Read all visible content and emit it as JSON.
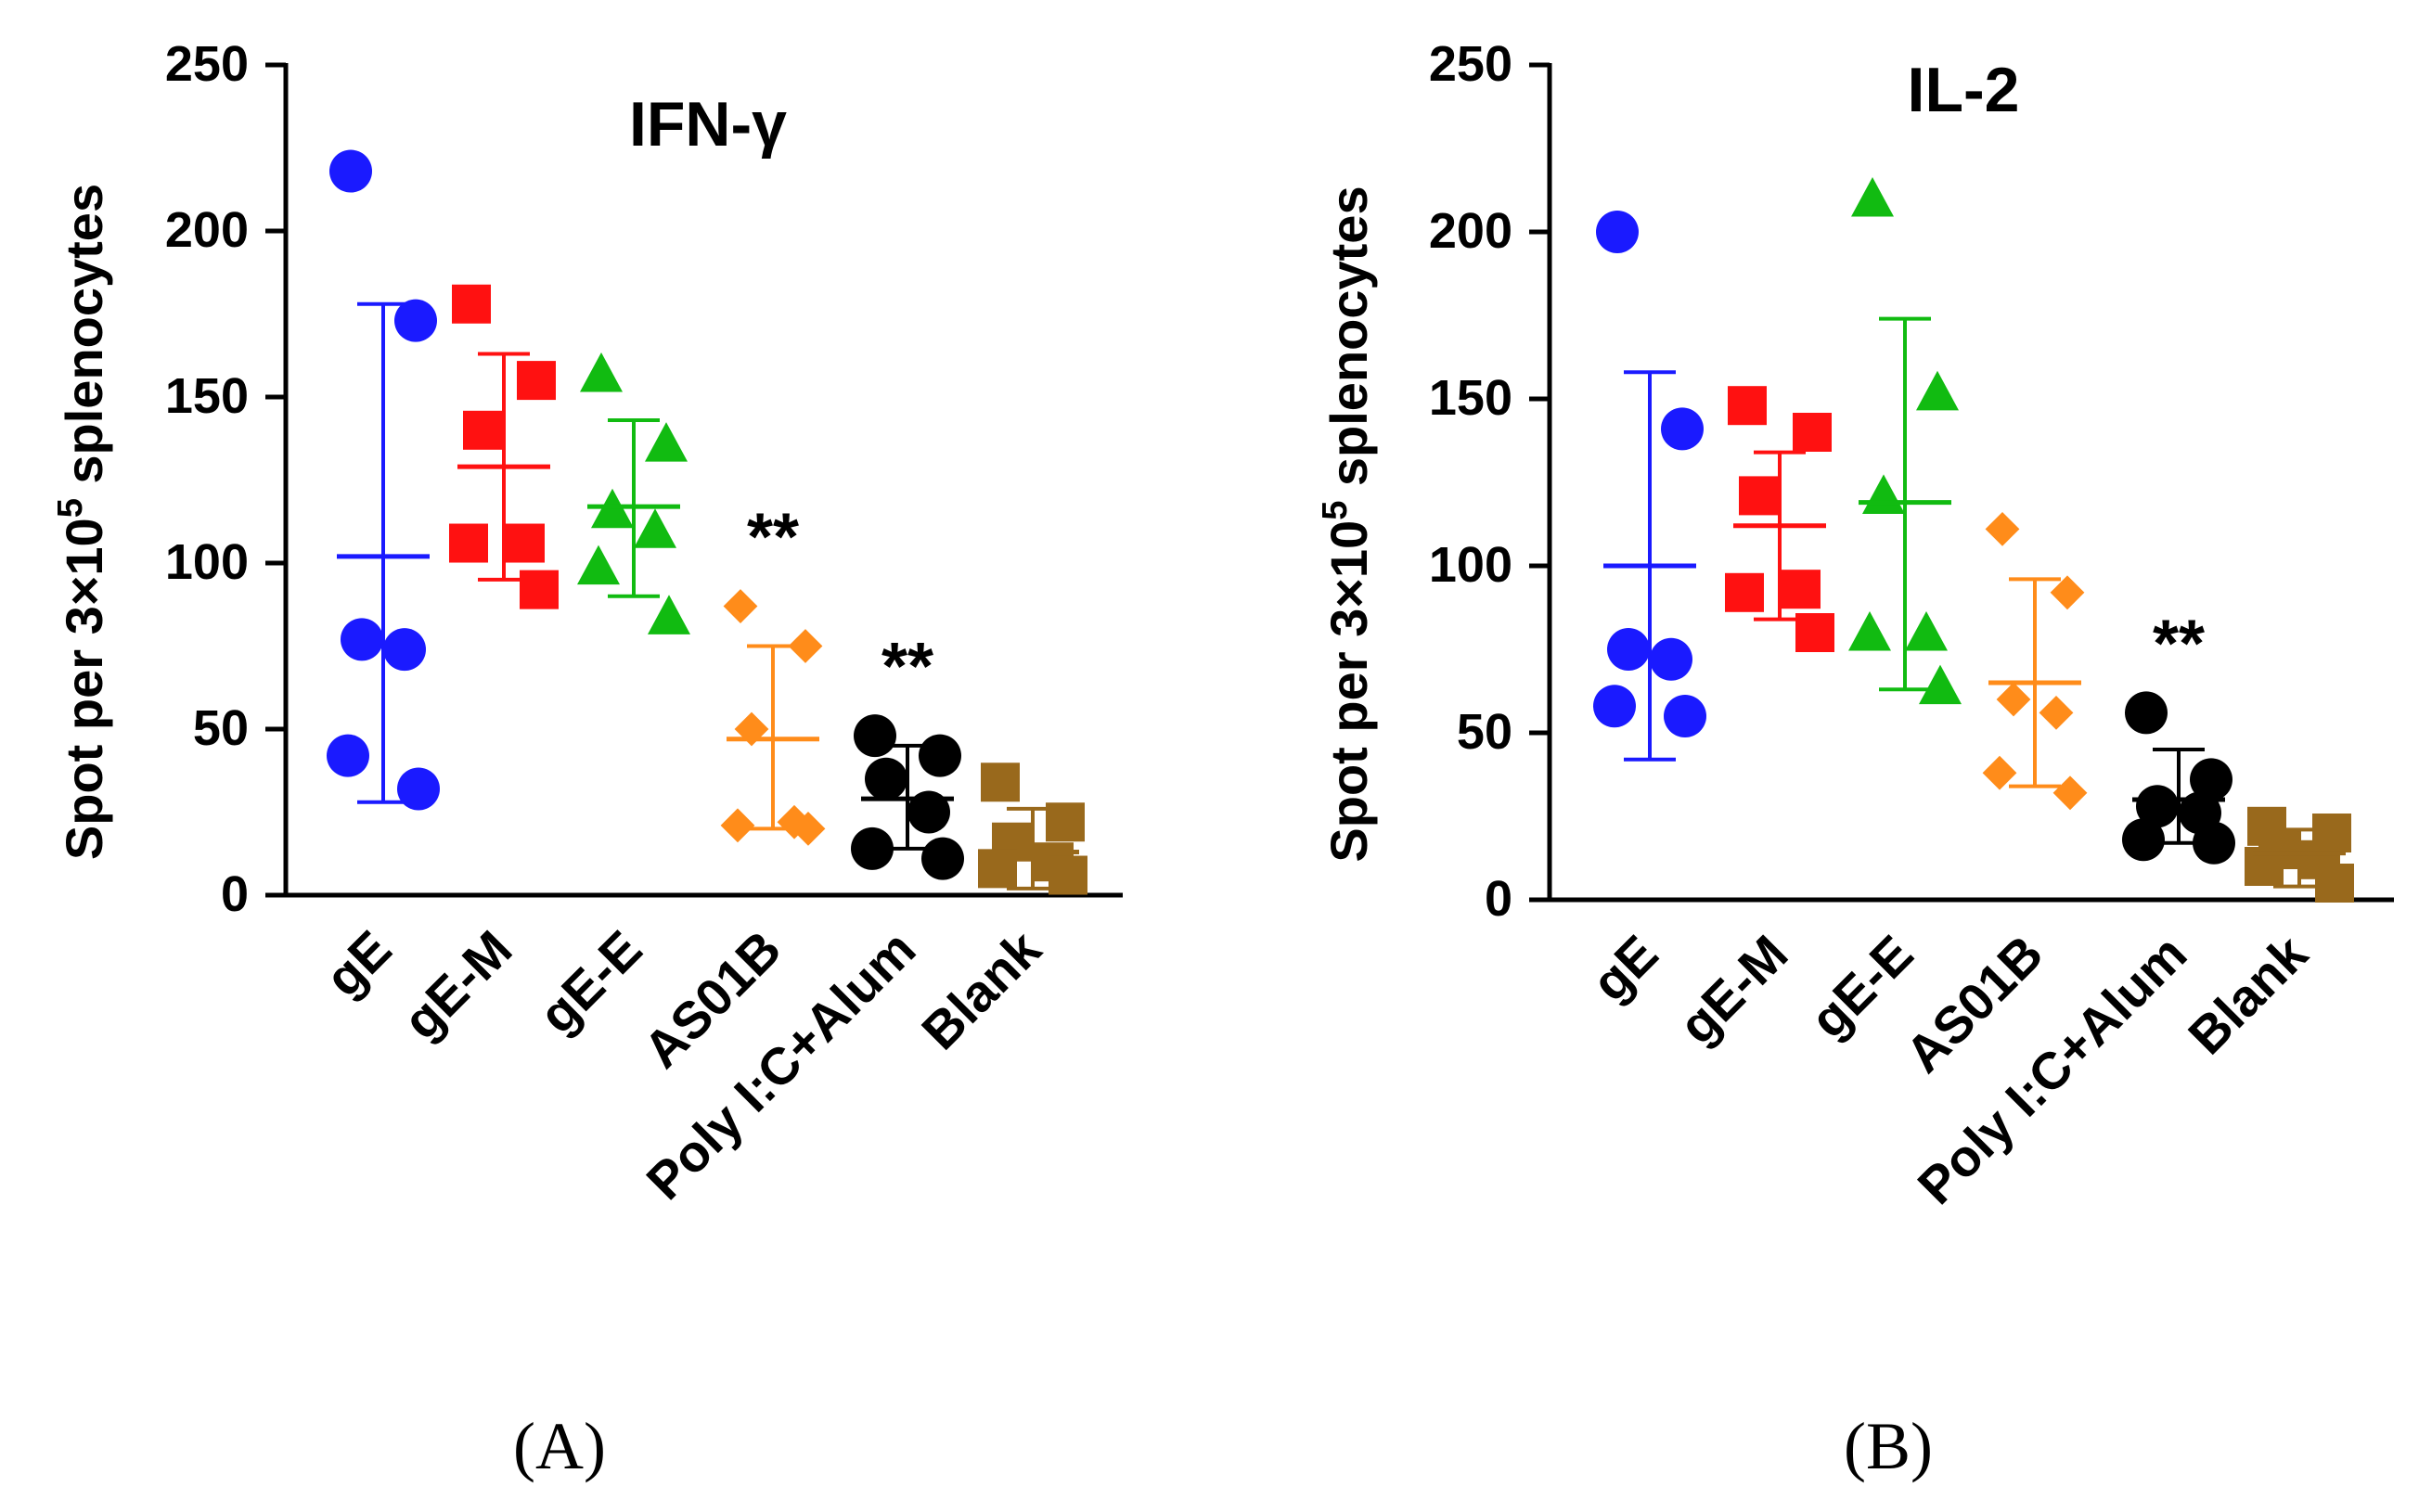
{
  "chart_data": [
    {
      "id": "A",
      "type": "scatter",
      "panel_label": "(A)",
      "title": "IFN-γ",
      "ylabel": "Spot per 3×10⁵ splenocytes",
      "ylabel_parts": {
        "pre": "Spot per 3×10",
        "sup": "5",
        "post": " splenocytes"
      },
      "xlabel": "",
      "ylim": [
        0,
        250
      ],
      "yticks": [
        "0",
        "50",
        "100",
        "150",
        "200",
        "250"
      ],
      "categories": [
        "gE",
        "gE-M",
        "gE-E",
        "AS01B",
        "Poly I:C+Alum",
        "Blank"
      ],
      "series": [
        {
          "name": "gE",
          "marker": "circle",
          "color": "#1a1aff",
          "values": [
            218,
            173,
            77,
            74,
            42,
            32
          ],
          "mean": 102,
          "sd_upper": 178,
          "sd_lower": 28,
          "significance": ""
        },
        {
          "name": "gE-M",
          "marker": "square",
          "color": "#ff1111",
          "values": [
            178,
            155,
            140,
            106,
            106,
            92
          ],
          "mean": 129,
          "sd_upper": 163,
          "sd_lower": 95,
          "significance": ""
        },
        {
          "name": "gE-E",
          "marker": "triangle",
          "color": "#11bb11",
          "values": [
            157,
            136,
            116,
            110,
            99,
            84
          ],
          "mean": 117,
          "sd_upper": 143,
          "sd_lower": 90,
          "significance": ""
        },
        {
          "name": "AS01B",
          "marker": "diamond",
          "color": "#ff8c1a",
          "values": [
            87,
            75,
            50,
            22,
            21,
            20
          ],
          "mean": 47,
          "sd_upper": 75,
          "sd_lower": 20,
          "significance": "**"
        },
        {
          "name": "Poly I:C+Alum",
          "marker": "circle",
          "color": "#000000",
          "values": [
            48,
            42,
            35,
            25,
            14,
            11
          ],
          "mean": 29,
          "sd_upper": 45,
          "sd_lower": 14,
          "significance": "**"
        },
        {
          "name": "Blank",
          "marker": "square",
          "color": "#99691c",
          "values": [
            34,
            22,
            16,
            10,
            8,
            6
          ],
          "mean": 13,
          "sd_upper": 26,
          "sd_lower": 2,
          "significance": ""
        }
      ]
    },
    {
      "id": "B",
      "type": "scatter",
      "panel_label": "(B)",
      "title": "IL-2",
      "ylabel": "Spot per 3×10⁵ splenocytes",
      "ylabel_parts": {
        "pre": "Spot per 3×10",
        "sup": "5",
        "post": " splenocytes"
      },
      "xlabel": "",
      "ylim": [
        0,
        250
      ],
      "yticks": [
        "0",
        "50",
        "100",
        "150",
        "200",
        "250"
      ],
      "categories": [
        "gE",
        "gE-M",
        "gE-E",
        "AS01B",
        "Poly I:C+Alum",
        "Blank"
      ],
      "series": [
        {
          "name": "gE",
          "marker": "circle",
          "color": "#1a1aff",
          "values": [
            200,
            141,
            75,
            72,
            58,
            55
          ],
          "mean": 100,
          "sd_upper": 158,
          "sd_lower": 42,
          "significance": ""
        },
        {
          "name": "gE-M",
          "marker": "square",
          "color": "#ff1111",
          "values": [
            148,
            140,
            121,
            93,
            92,
            80
          ],
          "mean": 112,
          "sd_upper": 134,
          "sd_lower": 84,
          "significance": ""
        },
        {
          "name": "gE-E",
          "marker": "triangle",
          "color": "#11bb11",
          "values": [
            210,
            152,
            121,
            80,
            80,
            64
          ],
          "mean": 119,
          "sd_upper": 174,
          "sd_lower": 63,
          "significance": ""
        },
        {
          "name": "AS01B",
          "marker": "diamond",
          "color": "#ff8c1a",
          "values": [
            111,
            92,
            60,
            56,
            38,
            32
          ],
          "mean": 65,
          "sd_upper": 96,
          "sd_lower": 34,
          "significance": ""
        },
        {
          "name": "Poly I:C+Alum",
          "marker": "circle",
          "color": "#000000",
          "values": [
            56,
            36,
            28,
            26,
            18,
            17
          ],
          "mean": 30,
          "sd_upper": 45,
          "sd_lower": 17,
          "significance": "**"
        },
        {
          "name": "Blank",
          "marker": "square",
          "color": "#99691c",
          "values": [
            22,
            20,
            15,
            12,
            10,
            5
          ],
          "mean": 14,
          "sd_upper": 21,
          "sd_lower": 4,
          "significance": ""
        }
      ]
    }
  ]
}
